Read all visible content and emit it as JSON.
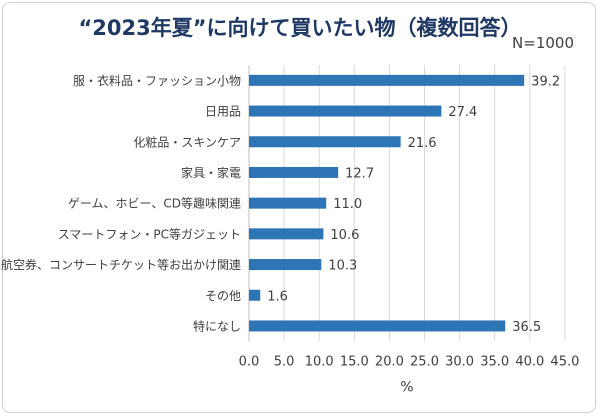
{
  "chart_data": {
    "type": "bar",
    "orientation": "horizontal",
    "title": "“2023年夏”に向けて買いたい物（複数回答）",
    "subtitle": "N=1000",
    "categories": [
      "服・衣料品・ファッション小物",
      "日用品",
      "化粧品・スキンケア",
      "家具・家電",
      "ゲーム、ホビー、CD等趣味関連",
      "スマートフォン・PC等ガジェット",
      "航空券、コンサートチケット等お出かけ関連",
      "その他",
      "特になし"
    ],
    "values": [
      39.2,
      27.4,
      21.6,
      12.7,
      11.0,
      10.6,
      10.3,
      1.6,
      36.5
    ],
    "data_labels": [
      "39.2",
      "27.4",
      "21.6",
      "12.7",
      "11.0",
      "10.6",
      "10.3",
      "1.6",
      "36.5"
    ],
    "xlabel": "%",
    "xlim": [
      0,
      45
    ],
    "xticks": [
      "0.0",
      "5.0",
      "10.0",
      "15.0",
      "20.0",
      "25.0",
      "30.0",
      "35.0",
      "40.0",
      "45.0"
    ],
    "grid": "vertical",
    "legend": "none",
    "colors": {
      "bar": "#2e75b6",
      "title": "#1f3864",
      "grid": "#d9d9d9"
    }
  }
}
